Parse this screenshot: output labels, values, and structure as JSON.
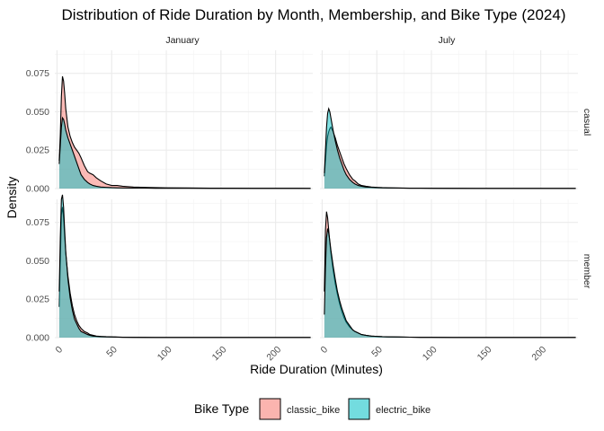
{
  "chart_data": {
    "type": "area",
    "title": "Distribution of Ride Duration by Month, Membership, and Bike Type (2024)",
    "xlabel": "Ride Duration (Minutes)",
    "ylabel": "Density",
    "xlim": [
      -2,
      234
    ],
    "ylim": [
      0,
      0.09
    ],
    "x_ticks": [
      0,
      50,
      100,
      150,
      200
    ],
    "y_ticks": [
      0,
      0.025,
      0.05,
      0.075
    ],
    "y_tick_labels": [
      "0.000",
      "0.025",
      "0.050",
      "0.075"
    ],
    "x_tick_labels": [
      "0",
      "50",
      "100",
      "150",
      "200"
    ],
    "grid": true,
    "columns": [
      "January",
      "July"
    ],
    "rows": [
      "casual",
      "member"
    ],
    "legend": {
      "title": "Bike Type",
      "position": "bottom",
      "entries": [
        {
          "label": "classic_bike",
          "color": "#F8766D"
        },
        {
          "label": "electric_bike",
          "color": "#00BFC4"
        }
      ]
    },
    "x": [
      2,
      3,
      4,
      5,
      6,
      7,
      8,
      10,
      12,
      14,
      16,
      18,
      20,
      22,
      25,
      28,
      30,
      33,
      36,
      40,
      45,
      50,
      55,
      60,
      70,
      80,
      90,
      100,
      120,
      140,
      160,
      180,
      200,
      220,
      232
    ],
    "panels": [
      {
        "column": "January",
        "row": "casual",
        "series": [
          {
            "name": "classic_bike",
            "values": [
              0.018,
              0.035,
              0.06,
              0.073,
              0.07,
              0.062,
              0.052,
              0.04,
              0.034,
              0.03,
              0.027,
              0.025,
              0.023,
              0.02,
              0.015,
              0.011,
              0.01,
              0.009,
              0.007,
              0.005,
              0.003,
              0.002,
              0.002,
              0.0015,
              0.001,
              0.0008,
              0.0006,
              0.0005,
              0.0004,
              0.0003,
              0.0003,
              0.0002,
              0.0002,
              0.0002,
              0.0001
            ]
          },
          {
            "name": "electric_bike",
            "values": [
              0.016,
              0.028,
              0.04,
              0.046,
              0.045,
              0.042,
              0.038,
              0.033,
              0.029,
              0.025,
              0.021,
              0.017,
              0.013,
              0.009,
              0.006,
              0.004,
              0.003,
              0.002,
              0.0015,
              0.001,
              0.0008,
              0.0006,
              0.0005,
              0.0004,
              0.0003,
              0.0003,
              0.0002,
              0.0002,
              0.0002,
              0.0001,
              0.0001,
              0.0001,
              0.0001,
              0.0001,
              0.0001
            ]
          }
        ]
      },
      {
        "column": "July",
        "row": "casual",
        "series": [
          {
            "name": "classic_bike",
            "values": [
              0.008,
              0.018,
              0.028,
              0.034,
              0.037,
              0.039,
              0.04,
              0.037,
              0.033,
              0.028,
              0.024,
              0.02,
              0.016,
              0.013,
              0.009,
              0.006,
              0.005,
              0.003,
              0.002,
              0.0015,
              0.001,
              0.0008,
              0.0006,
              0.0005,
              0.0004,
              0.0003,
              0.0003,
              0.0002,
              0.0002,
              0.0001,
              0.0001,
              0.0001,
              0.0001,
              0.0001,
              0.0001
            ]
          },
          {
            "name": "electric_bike",
            "values": [
              0.01,
              0.025,
              0.04,
              0.049,
              0.052,
              0.05,
              0.046,
              0.038,
              0.031,
              0.025,
              0.02,
              0.016,
              0.012,
              0.009,
              0.006,
              0.004,
              0.003,
              0.002,
              0.0015,
              0.001,
              0.0008,
              0.0006,
              0.0005,
              0.0004,
              0.0003,
              0.0002,
              0.0002,
              0.0002,
              0.0001,
              0.0001,
              0.0001,
              0.0001,
              0.0001,
              0.0001,
              0.0001
            ]
          }
        ]
      },
      {
        "column": "January",
        "row": "member",
        "series": [
          {
            "name": "classic_bike",
            "values": [
              0.02,
              0.05,
              0.08,
              0.085,
              0.078,
              0.066,
              0.055,
              0.04,
              0.029,
              0.021,
              0.015,
              0.011,
              0.008,
              0.006,
              0.004,
              0.003,
              0.002,
              0.0015,
              0.001,
              0.0008,
              0.0006,
              0.0005,
              0.0004,
              0.0003,
              0.0002,
              0.0002,
              0.0001,
              0.0001,
              0.0001,
              0.0001,
              0.0001,
              0.0001,
              0.0001,
              0.0001,
              0.0001
            ]
          },
          {
            "name": "electric_bike",
            "values": [
              0.03,
              0.065,
              0.09,
              0.093,
              0.085,
              0.07,
              0.056,
              0.038,
              0.026,
              0.018,
              0.012,
              0.009,
              0.006,
              0.004,
              0.003,
              0.002,
              0.0015,
              0.001,
              0.0008,
              0.0006,
              0.0005,
              0.0004,
              0.0003,
              0.0002,
              0.0002,
              0.0001,
              0.0001,
              0.0001,
              0.0001,
              0.0001,
              0.0001,
              0.0001,
              0.0001,
              0.0001,
              0.0001
            ]
          }
        ]
      },
      {
        "column": "July",
        "row": "member",
        "series": [
          {
            "name": "classic_bike",
            "values": [
              0.03,
              0.07,
              0.082,
              0.078,
              0.07,
              0.062,
              0.055,
              0.044,
              0.035,
              0.028,
              0.022,
              0.017,
              0.013,
              0.01,
              0.007,
              0.005,
              0.004,
              0.003,
              0.002,
              0.0015,
              0.001,
              0.0008,
              0.0006,
              0.0005,
              0.0004,
              0.0003,
              0.0002,
              0.0002,
              0.0001,
              0.0001,
              0.0001,
              0.0001,
              0.0001,
              0.0001,
              0.0001
            ]
          },
          {
            "name": "electric_bike",
            "values": [
              0.015,
              0.045,
              0.065,
              0.071,
              0.068,
              0.063,
              0.057,
              0.047,
              0.038,
              0.03,
              0.024,
              0.019,
              0.015,
              0.011,
              0.008,
              0.005,
              0.004,
              0.003,
              0.002,
              0.0015,
              0.001,
              0.0008,
              0.0006,
              0.0005,
              0.0004,
              0.0003,
              0.0002,
              0.0002,
              0.0001,
              0.0001,
              0.0001,
              0.0001,
              0.0001,
              0.0001,
              0.0001
            ]
          }
        ]
      }
    ]
  }
}
